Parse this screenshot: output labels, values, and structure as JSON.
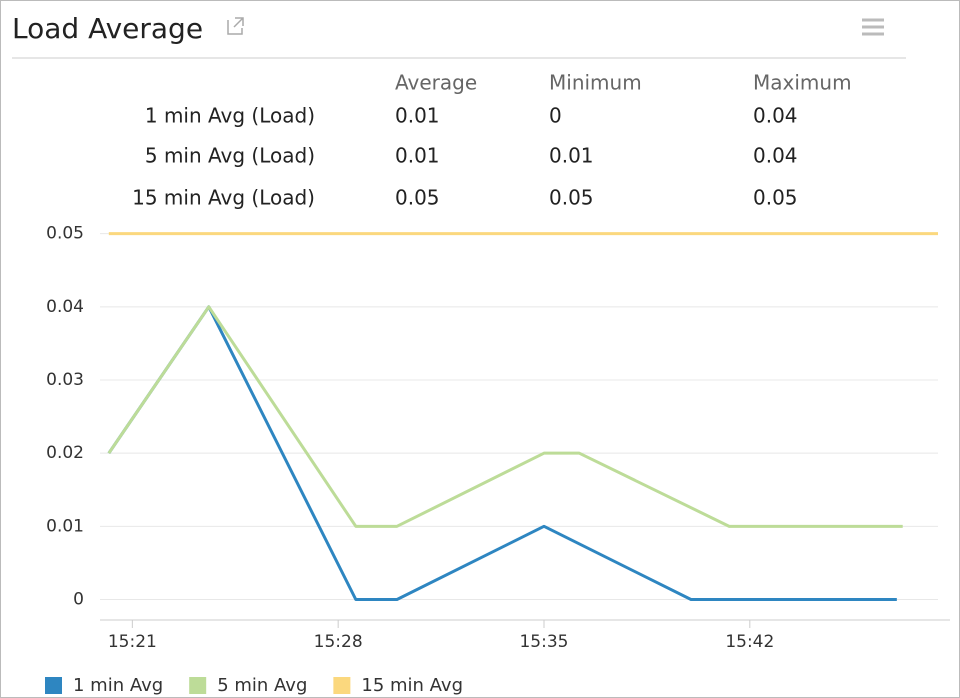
{
  "header": {
    "title": "Load Average"
  },
  "table": {
    "columns": [
      "Average",
      "Minimum",
      "Maximum"
    ],
    "rows": [
      [
        "1 min Avg (Load)",
        0.01,
        0,
        0.04
      ],
      [
        "5 min Avg (Load)",
        0.01,
        0.01,
        0.04
      ],
      [
        "15 min Avg (Load)",
        0.05,
        0.05,
        0.05
      ]
    ]
  },
  "chart_data": {
    "type": "line",
    "xlim": [
      919.9,
      948.4
    ],
    "ylim": [
      -0.0028,
      0.0505
    ],
    "xticks": [
      {
        "value": 921,
        "label": "15:21"
      },
      {
        "value": 928,
        "label": "15:28"
      },
      {
        "value": 935,
        "label": "15:35"
      },
      {
        "value": 942,
        "label": "15:42"
      }
    ],
    "yticks": [
      0,
      0.01,
      0.02,
      0.03,
      0.04,
      0.05
    ],
    "grid": true,
    "series": [
      {
        "name": "1 min Avg",
        "color": "#2e86c1",
        "x": [
          920.2,
          923.6,
          928.6,
          930.0,
          935.0,
          940.0,
          947.0
        ],
        "values": [
          0.02,
          0.04,
          0,
          0,
          0.01,
          0,
          0
        ]
      },
      {
        "name": "5 min Avg",
        "color": "#bddc98",
        "x": [
          920.2,
          923.6,
          928.6,
          930.0,
          935.0,
          936.2,
          941.3,
          947.2
        ],
        "values": [
          0.02,
          0.04,
          0.01,
          0.01,
          0.02,
          0.02,
          0.01,
          0.01
        ]
      },
      {
        "name": "15 min Avg",
        "color": "#fbd87e",
        "x": [
          920.2,
          948.4
        ],
        "values": [
          0.05,
          0.05
        ]
      }
    ]
  }
}
